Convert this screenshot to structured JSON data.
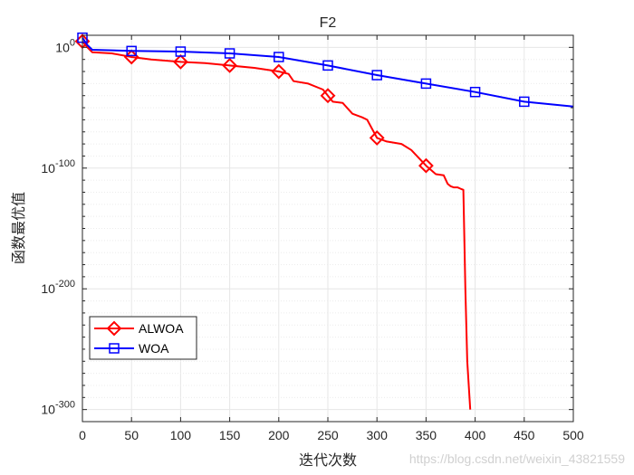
{
  "watermark": "https://blog.csdn.net/weixin_43821559",
  "colors": {
    "alwoa": "#ff0000",
    "woa": "#0000ff",
    "grid": "#e6e6e6",
    "axis": "#262626"
  },
  "chart_data": {
    "type": "line",
    "title": "F2",
    "xlabel": "迭代次数",
    "ylabel": "函数最优值",
    "y_scale": "log10",
    "xlim": [
      0,
      500
    ],
    "ylim_exponent": [
      -310,
      10
    ],
    "x_ticks": [
      0,
      50,
      100,
      150,
      200,
      250,
      300,
      350,
      400,
      450,
      500
    ],
    "y_ticks": [
      {
        "base": "10",
        "exp": "0",
        "value_exp": 0
      },
      {
        "base": "10",
        "exp": "-100",
        "value_exp": -100
      },
      {
        "base": "10",
        "exp": "-200",
        "value_exp": -200
      },
      {
        "base": "10",
        "exp": "-300",
        "value_exp": -300
      }
    ],
    "legend": {
      "position": "bottom-left",
      "entries": [
        "ALWOA",
        "WOA"
      ]
    },
    "grid": true,
    "series": [
      {
        "name": "ALWOA",
        "color": "#ff0000",
        "marker": "diamond",
        "x": [
          0,
          5,
          10,
          30,
          50,
          70,
          100,
          125,
          150,
          175,
          200,
          210,
          215,
          230,
          245,
          250,
          255,
          265,
          275,
          285,
          290,
          300,
          310,
          325,
          335,
          350,
          360,
          368,
          372,
          375,
          378,
          382,
          385,
          388,
          390,
          392,
          395
        ],
        "log10_y": [
          5,
          0,
          -4,
          -5,
          -8,
          -10,
          -12,
          -13,
          -15,
          -17,
          -20,
          -22,
          -28,
          -30,
          -35,
          -40,
          -45,
          -46,
          -55,
          -58,
          -60,
          -75,
          -78,
          -80,
          -85,
          -98,
          -105,
          -106,
          -113,
          -115,
          -116,
          -116,
          -117,
          -118,
          -200,
          -260,
          -300
        ]
      },
      {
        "name": "WOA",
        "color": "#0000ff",
        "marker": "square",
        "x": [
          0,
          5,
          10,
          50,
          100,
          150,
          200,
          250,
          300,
          350,
          400,
          450,
          500
        ],
        "log10_y": [
          8,
          2,
          -2,
          -3,
          -3.5,
          -5,
          -8,
          -15,
          -23,
          -30,
          -37,
          -45,
          -49
        ]
      }
    ],
    "marker_x": {
      "ALWOA": [
        0,
        50,
        100,
        150,
        200,
        250,
        300,
        350
      ],
      "WOA": [
        0,
        50,
        100,
        150,
        200,
        250,
        300,
        350,
        400,
        450
      ]
    }
  }
}
